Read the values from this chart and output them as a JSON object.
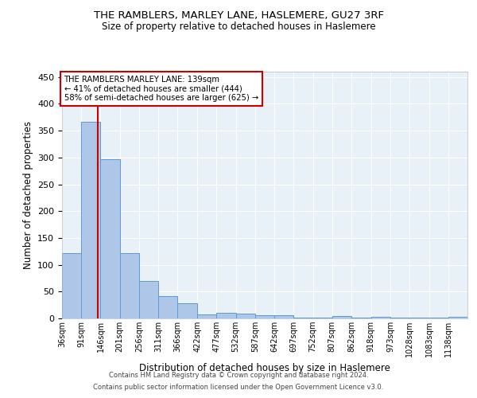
{
  "title1": "THE RAMBLERS, MARLEY LANE, HASLEMERE, GU27 3RF",
  "title2": "Size of property relative to detached houses in Haslemere",
  "xlabel": "Distribution of detached houses by size in Haslemere",
  "ylabel": "Number of detached properties",
  "bin_labels": [
    "36sqm",
    "91sqm",
    "146sqm",
    "201sqm",
    "256sqm",
    "311sqm",
    "366sqm",
    "422sqm",
    "477sqm",
    "532sqm",
    "587sqm",
    "642sqm",
    "697sqm",
    "752sqm",
    "807sqm",
    "862sqm",
    "918sqm",
    "973sqm",
    "1028sqm",
    "1083sqm",
    "1138sqm"
  ],
  "bin_edges": [
    36,
    91,
    146,
    201,
    256,
    311,
    366,
    422,
    477,
    532,
    587,
    642,
    697,
    752,
    807,
    862,
    918,
    973,
    1028,
    1083,
    1138,
    1193
  ],
  "values": [
    122,
    367,
    297,
    122,
    70,
    42,
    28,
    8,
    10,
    9,
    6,
    6,
    2,
    1,
    4,
    1,
    3,
    1,
    2,
    1,
    3
  ],
  "bar_color": "#aec6e8",
  "bar_edge_color": "#5b9bd5",
  "property_size": 139,
  "vline_color": "#cc0000",
  "annotation_line1": "THE RAMBLERS MARLEY LANE: 139sqm",
  "annotation_line2": "← 41% of detached houses are smaller (444)",
  "annotation_line3": "58% of semi-detached houses are larger (625) →",
  "annotation_box_color": "#cc0000",
  "plot_bg_color": "#e8f0f8",
  "footer_line1": "Contains HM Land Registry data © Crown copyright and database right 2024.",
  "footer_line2": "Contains public sector information licensed under the Open Government Licence v3.0.",
  "ylim": [
    0,
    460
  ],
  "yticks": [
    0,
    50,
    100,
    150,
    200,
    250,
    300,
    350,
    400,
    450
  ]
}
